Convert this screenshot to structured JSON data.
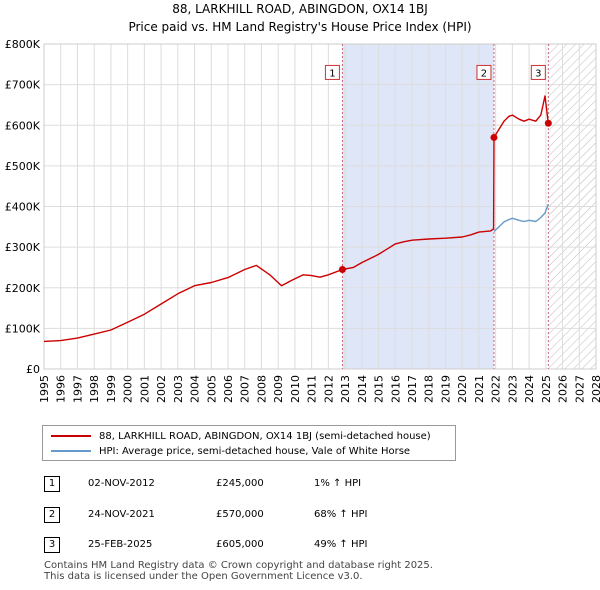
{
  "title": "88, LARKHILL ROAD, ABINGDON, OX14 1BJ",
  "subtitle": "Price paid vs. HM Land Registry's House Price Index (HPI)",
  "colors": {
    "property_line": "#cc0000",
    "hpi_line": "#6699cc",
    "marker_dot": "#cc0000",
    "marker_band": "#dfe6f7",
    "vline": "#cc6677",
    "grid": "#dddddd",
    "hatch": "#bbbbbb"
  },
  "chart_data": {
    "type": "line",
    "title": "88, LARKHILL ROAD, ABINGDON, OX14 1BJ",
    "subtitle": "Price paid vs. HM Land Registry's House Price Index (HPI)",
    "xlim": [
      1995,
      2028
    ],
    "ylim": [
      0,
      800000
    ],
    "x_ticks": [
      1995,
      1996,
      1997,
      1998,
      1999,
      2000,
      2001,
      2002,
      2003,
      2004,
      2005,
      2006,
      2007,
      2008,
      2009,
      2010,
      2011,
      2012,
      2013,
      2014,
      2015,
      2016,
      2017,
      2018,
      2019,
      2020,
      2021,
      2022,
      2023,
      2024,
      2025,
      2026,
      2027,
      2028
    ],
    "y_ticks": [
      0,
      100000,
      200000,
      300000,
      400000,
      500000,
      600000,
      700000,
      800000
    ],
    "y_tick_labels": [
      "£0",
      "£100K",
      "£200K",
      "£300K",
      "£400K",
      "£500K",
      "£600K",
      "£700K",
      "£800K"
    ],
    "grid": true,
    "forecast_start": 2025.15,
    "series": [
      {
        "name": "88, LARKHILL ROAD, ABINGDON, OX14 1BJ (semi-detached house)",
        "color": "#cc0000",
        "points": [
          [
            1995.0,
            68000
          ],
          [
            1996.0,
            70000
          ],
          [
            1997.0,
            76000
          ],
          [
            1998.0,
            86000
          ],
          [
            1999.0,
            96000
          ],
          [
            2000.0,
            115000
          ],
          [
            2001.0,
            135000
          ],
          [
            2002.0,
            160000
          ],
          [
            2003.0,
            185000
          ],
          [
            2004.0,
            205000
          ],
          [
            2005.0,
            213000
          ],
          [
            2006.0,
            225000
          ],
          [
            2007.0,
            245000
          ],
          [
            2007.7,
            255000
          ],
          [
            2008.5,
            232000
          ],
          [
            2009.2,
            205000
          ],
          [
            2009.8,
            218000
          ],
          [
            2010.5,
            232000
          ],
          [
            2011.0,
            230000
          ],
          [
            2011.5,
            226000
          ],
          [
            2012.0,
            232000
          ],
          [
            2012.84,
            245000
          ],
          [
            2013.5,
            250000
          ],
          [
            2014.0,
            262000
          ],
          [
            2014.5,
            272000
          ],
          [
            2015.0,
            282000
          ],
          [
            2015.5,
            295000
          ],
          [
            2016.0,
            308000
          ],
          [
            2016.5,
            313000
          ],
          [
            2017.0,
            317000
          ],
          [
            2018.0,
            320000
          ],
          [
            2019.0,
            322000
          ],
          [
            2020.0,
            325000
          ],
          [
            2020.5,
            330000
          ],
          [
            2021.0,
            337000
          ],
          [
            2021.7,
            340000
          ],
          [
            2021.88,
            345000
          ],
          [
            2021.9,
            570000
          ],
          [
            2022.2,
            590000
          ],
          [
            2022.5,
            610000
          ],
          [
            2022.8,
            622000
          ],
          [
            2023.0,
            625000
          ],
          [
            2023.4,
            615000
          ],
          [
            2023.7,
            610000
          ],
          [
            2024.0,
            615000
          ],
          [
            2024.4,
            610000
          ],
          [
            2024.7,
            625000
          ],
          [
            2024.95,
            672000
          ],
          [
            2025.15,
            605000
          ]
        ]
      },
      {
        "name": "HPI: Average price, semi-detached house, Vale of White Horse",
        "color": "#6699cc",
        "points": [
          [
            2021.9,
            339000
          ],
          [
            2022.2,
            350000
          ],
          [
            2022.5,
            362000
          ],
          [
            2022.8,
            368000
          ],
          [
            2023.0,
            371000
          ],
          [
            2023.4,
            366000
          ],
          [
            2023.7,
            363000
          ],
          [
            2024.0,
            366000
          ],
          [
            2024.4,
            363000
          ],
          [
            2024.7,
            373000
          ],
          [
            2024.95,
            384000
          ],
          [
            2025.15,
            406000
          ]
        ]
      }
    ],
    "markers": [
      {
        "label": "1",
        "x": 2012.84,
        "y": 245000,
        "date": "02-NOV-2012"
      },
      {
        "label": "2",
        "x": 2021.9,
        "y": 570000,
        "date": "24-NOV-2021"
      },
      {
        "label": "3",
        "x": 2025.15,
        "y": 605000,
        "date": "25-FEB-2025"
      }
    ],
    "marker_band": [
      2012.84,
      2021.9
    ]
  },
  "legend": {
    "property_label": "88, LARKHILL ROAD, ABINGDON, OX14 1BJ (semi-detached house)",
    "hpi_label": "HPI: Average price, semi-detached house, Vale of White Horse"
  },
  "transactions": [
    {
      "num": "1",
      "date": "02-NOV-2012",
      "price": "£245,000",
      "hpi": "1% ↑ HPI"
    },
    {
      "num": "2",
      "date": "24-NOV-2021",
      "price": "£570,000",
      "hpi": "68% ↑ HPI"
    },
    {
      "num": "3",
      "date": "25-FEB-2025",
      "price": "£605,000",
      "hpi": "49% ↑ HPI"
    }
  ],
  "footer": {
    "line1": "Contains HM Land Registry data © Crown copyright and database right 2025.",
    "line2": "This data is licensed under the Open Government Licence v3.0."
  }
}
